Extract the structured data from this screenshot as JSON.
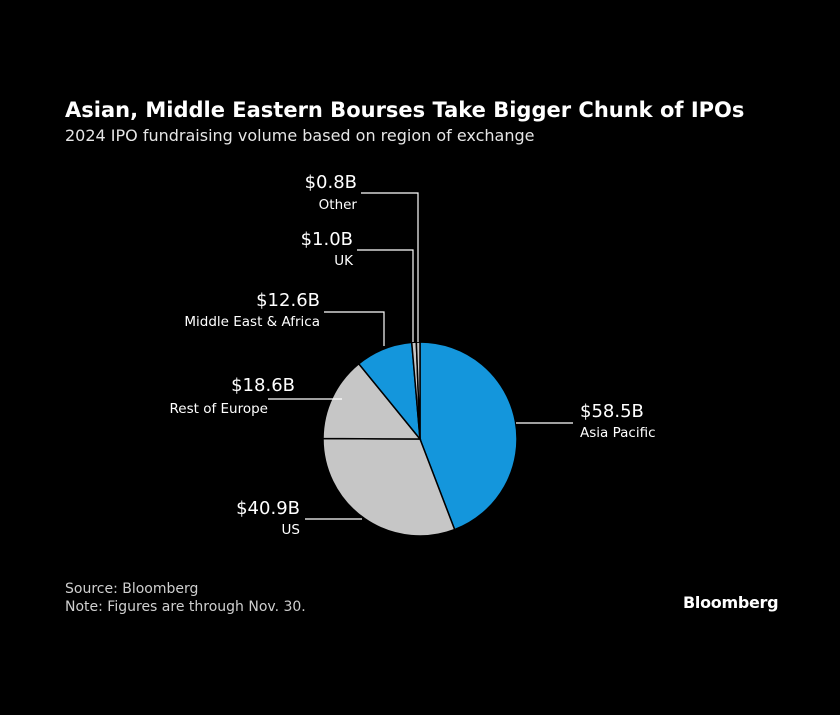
{
  "header": {
    "title": "Asian, Middle Eastern Bourses Take Bigger Chunk of IPOs",
    "subtitle": "2024 IPO fundraising volume based on region of exchange"
  },
  "footer": {
    "source": "Source: Bloomberg",
    "note": "Note: Figures are through Nov. 30.",
    "logo": "Bloomberg"
  },
  "colors": {
    "blue": "#1496dc",
    "gray": "#c6c6c6",
    "background": "#000000"
  },
  "chart_data": {
    "type": "pie",
    "title": "Asian, Middle Eastern Bourses Take Bigger Chunk of IPOs",
    "subtitle": "2024 IPO fundraising volume based on region of exchange",
    "unit": "USD billions",
    "slices": [
      {
        "name": "Asia Pacific",
        "value": 58.5,
        "label": "$58.5B",
        "color": "#1496dc"
      },
      {
        "name": "US",
        "value": 40.9,
        "label": "$40.9B",
        "color": "#c6c6c6"
      },
      {
        "name": "Rest of Europe",
        "value": 18.6,
        "label": "$18.6B",
        "color": "#c6c6c6"
      },
      {
        "name": "Middle East & Africa",
        "value": 12.6,
        "label": "$12.6B",
        "color": "#1496dc"
      },
      {
        "name": "UK",
        "value": 1.0,
        "label": "$1.0B",
        "color": "#c6c6c6"
      },
      {
        "name": "Other",
        "value": 0.8,
        "label": "$0.8B",
        "color": "#c6c6c6"
      }
    ]
  }
}
